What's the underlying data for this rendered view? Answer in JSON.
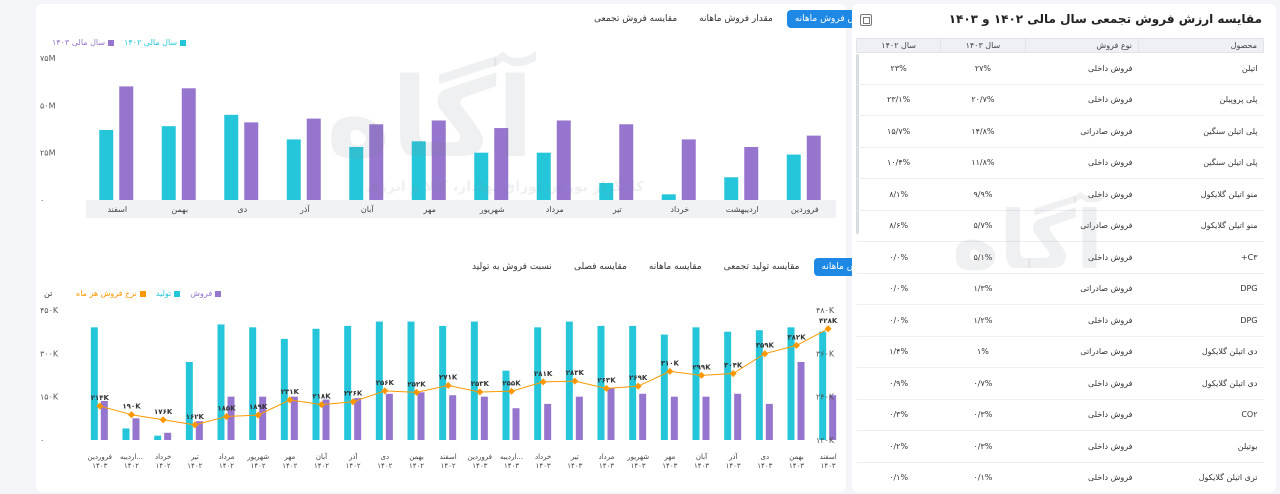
{
  "top_chart": {
    "tabs": [
      "ارزش فروش ماهانه",
      "مقدار فروش ماهانه",
      "مقایسه فروش تجمعی"
    ],
    "active_tab": 0,
    "legend": [
      {
        "label": "سال مالی ۱۴۰۳",
        "color": "#9575cd"
      },
      {
        "label": "سال مالی ۱۴۰۲",
        "color": "#26c6da"
      }
    ],
    "chart_data": {
      "type": "bar",
      "categories": [
        "اسفند",
        "بهمن",
        "دی",
        "آذر",
        "آبان",
        "مهر",
        "شهریور",
        "مرداد",
        "تیر",
        "خرداد",
        "اردیبهشت",
        "فروردین"
      ],
      "series": [
        {
          "name": "سال مالی ۱۴۰۲",
          "color": "#26c6da",
          "values": [
            37,
            39,
            45,
            32,
            28,
            31,
            25,
            25,
            9,
            3,
            12,
            24
          ]
        },
        {
          "name": "سال مالی ۱۴۰۳",
          "color": "#9575cd",
          "values": [
            60,
            59,
            41,
            43,
            40,
            42,
            38,
            42,
            40,
            32,
            28,
            34
          ]
        }
      ],
      "yticks": [
        "۷۵M",
        "۵۰M",
        "۲۵M",
        "۰"
      ],
      "ylim": [
        0,
        75
      ]
    }
  },
  "bottom_chart": {
    "tabs": [
      "فروش ماهانه",
      "مقایسه تولید تجمعی",
      "مقایسه ماهانه",
      "مقایسه فصلی",
      "نسبت فروش به تولید"
    ],
    "active_tab": 0,
    "unit_label": "تن",
    "legend": [
      {
        "label": "نرخ فروش هر ماه",
        "color": "#ff9800"
      },
      {
        "label": "تولید",
        "color": "#26c6da"
      },
      {
        "label": "فروش",
        "color": "#9575cd"
      }
    ],
    "chart_data": {
      "type": "bar+line",
      "categories": [
        [
          "فروردین",
          "۱۴۰۳"
        ],
        [
          "اردیبه...",
          "۱۴۰۲"
        ],
        [
          "خرداد",
          "۱۴۰۲"
        ],
        [
          "تیر",
          "۱۴۰۲"
        ],
        [
          "مرداد",
          "۱۴۰۲"
        ],
        [
          "شهریور",
          "۱۴۰۲"
        ],
        [
          "مهر",
          "۱۴۰۲"
        ],
        [
          "آبان",
          "۱۴۰۲"
        ],
        [
          "آذر",
          "۱۴۰۲"
        ],
        [
          "دی",
          "۱۴۰۲"
        ],
        [
          "بهمن",
          "۱۴۰۲"
        ],
        [
          "اسفند",
          "۱۴۰۲"
        ],
        [
          "فروردین",
          "۱۴۰۳"
        ],
        [
          "اردیبه...",
          "۱۴۰۳"
        ],
        [
          "خرداد",
          "۱۴۰۳"
        ],
        [
          "تیر",
          "۱۴۰۳"
        ],
        [
          "مرداد",
          "۱۴۰۳"
        ],
        [
          "شهریور",
          "۱۴۰۳"
        ],
        [
          "مهر",
          "۱۴۰۳"
        ],
        [
          "آبان",
          "۱۴۰۳"
        ],
        [
          "آذر",
          "۱۴۰۳"
        ],
        [
          "دی",
          "۱۴۰۳"
        ],
        [
          "بهمن",
          "۱۴۰۳"
        ],
        [
          "اسفند",
          "۱۴۰۳"
        ]
      ],
      "production": [
        390,
        40,
        15,
        270,
        400,
        390,
        350,
        385,
        395,
        410,
        410,
        395,
        410,
        240,
        390,
        410,
        395,
        395,
        365,
        390,
        375,
        380,
        390,
        375
      ],
      "sales": [
        135,
        75,
        25,
        65,
        150,
        150,
        150,
        140,
        145,
        160,
        165,
        155,
        150,
        110,
        125,
        150,
        180,
        160,
        150,
        150,
        160,
        125,
        270,
        155
      ],
      "rate": [
        214,
        190,
        176,
        162,
        185,
        189,
        231,
        218,
        226,
        256,
        252,
        271,
        253,
        255,
        281,
        283,
        263,
        269,
        310,
        299,
        304,
        359,
        382,
        428
      ],
      "rate_labels": [
        "۲۱۴K",
        "۱۹۰K",
        "۱۷۶K",
        "۱۶۲K",
        "۱۸۵K",
        "۱۸۹K",
        "۲۳۱K",
        "۲۱۸K",
        "۲۲۶K",
        "۲۵۶K",
        "۲۵۲K",
        "۲۷۱K",
        "۲۵۳K",
        "۲۵۵K",
        "۲۸۱K",
        "۲۸۳K",
        "۲۶۳K",
        "۲۶۹K",
        "۳۱۰K",
        "۲۹۹K",
        "۳۰۴K",
        "۳۵۹K",
        "۳۸۲K",
        "۴۲۸K"
      ],
      "y_left_ticks": [
        "۴۵۰K",
        "۳۰۰K",
        "۱۵۰K",
        "۰"
      ],
      "y_left_lim": [
        0,
        450
      ],
      "y_right_ticks": [
        "۴۸۰K",
        "۳۶۰K",
        "۲۴۰K",
        "۱۲۰K"
      ],
      "y_right_lim": [
        120,
        480
      ]
    }
  },
  "table": {
    "title": "مقایسه ارزش فروش تجمعی سال مالی ۱۴۰۲ و ۱۴۰۳",
    "headers": [
      "محصول",
      "نوع فروش",
      "سال ۱۴۰۳",
      "سال ۱۴۰۲"
    ],
    "rows": [
      [
        "اتیلن",
        "فروش داخلی",
        "۲۷%",
        "۲۳%"
      ],
      [
        "پلی پروپیلن",
        "فروش داخلی",
        "۲۰/۷%",
        "۲۳/۱%"
      ],
      [
        "پلی اتیلن سنگین",
        "فروش صادراتی",
        "۱۴/۸%",
        "۱۵/۷%"
      ],
      [
        "پلی اتیلن سنگین",
        "فروش داخلی",
        "۱۱/۸%",
        "۱۰/۴%"
      ],
      [
        "منو اتیلن گلایکول",
        "فروش داخلی",
        "۹/۹%",
        "۸/۱%"
      ],
      [
        "منو اتیلن گلایکول",
        "فروش صادراتی",
        "۵/۷%",
        "۸/۶%"
      ],
      [
        "C۳+",
        "فروش داخلی",
        "۵/۱%",
        "۰/۰%"
      ],
      [
        "DPG",
        "فروش صادراتی",
        "۱/۳%",
        "۰/۰%"
      ],
      [
        "DPG",
        "فروش داخلی",
        "۱/۲%",
        "۰/۰%"
      ],
      [
        "دی اتیلن گلایکول",
        "فروش صادراتی",
        "۱%",
        "۱/۴%"
      ],
      [
        "دی اتیلن گلایکول",
        "فروش داخلی",
        "۰/۷%",
        "۰/۹%"
      ],
      [
        "CO۲",
        "فروش داخلی",
        "۰/۳%",
        "۰/۳%"
      ],
      [
        "بوتیلن",
        "فروش داخلی",
        "۰/۳%",
        "۰/۲%"
      ],
      [
        "تری اتیلن گلایکول",
        "فروش داخلی",
        "۰/۱%",
        "۰/۱%"
      ]
    ]
  },
  "watermark": {
    "brand": "آگاه",
    "tagline": "کارگزار بورس اوراق بهادار، کالا و انرژی"
  },
  "colors": {
    "accent": "#1e88e5",
    "cyan": "#26c6da",
    "purple": "#9575cd",
    "orange": "#ff9800"
  }
}
